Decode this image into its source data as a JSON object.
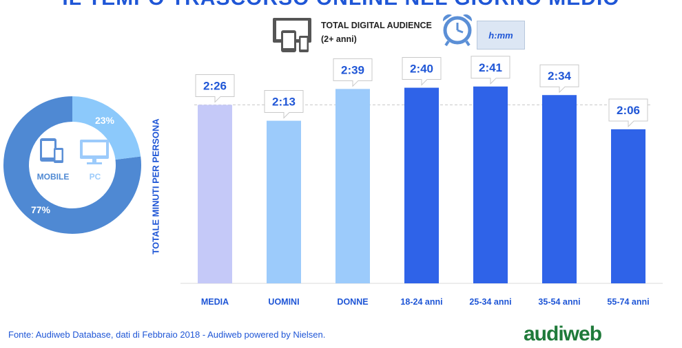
{
  "header": {
    "title": "IL TEMPO TRASCORSO ONLINE NEL GIORNO MEDIO",
    "audience_label": "TOTAL DIGITAL AUDIENCE (2+ anni)",
    "time_format": "h:mm",
    "icons": {
      "audience": "devices-icon",
      "time": "alarm-clock-icon"
    }
  },
  "donut": {
    "slices": [
      {
        "label": "MOBILE",
        "value": 77,
        "value_text": "77%",
        "color": "#4f89d3",
        "icon": "tablet-phone-icon"
      },
      {
        "label": "PC",
        "value": 23,
        "value_text": "23%",
        "color": "#8cc9fb",
        "icon": "monitor-icon"
      }
    ]
  },
  "chart_data": {
    "type": "bar",
    "ylabel": "TOTALE MINUTI PER PERSONA",
    "xlabel": "",
    "categories": [
      "MEDIA",
      "UOMINI",
      "DONNE",
      "18-24 anni",
      "25-34 anni",
      "35-54 anni",
      "55-74 anni"
    ],
    "values": [
      146,
      133,
      159,
      160,
      161,
      154,
      126
    ],
    "value_labels": [
      "2:26",
      "2:13",
      "2:39",
      "2:40",
      "2:41",
      "2:34",
      "2:06"
    ],
    "colors": [
      "#c5c9f8",
      "#9ccbfb",
      "#9ccbfb",
      "#2f63e8",
      "#2f63e8",
      "#2f63e8",
      "#2f63e8"
    ],
    "reference_line": 146,
    "ylim": [
      0,
      180
    ],
    "grid": false,
    "legend": "none"
  },
  "footer": {
    "source": "Fonte: Audiweb Database, dati di Febbraio 2018 - Audiweb powered by Nielsen.",
    "logo_text": "audiweb"
  }
}
